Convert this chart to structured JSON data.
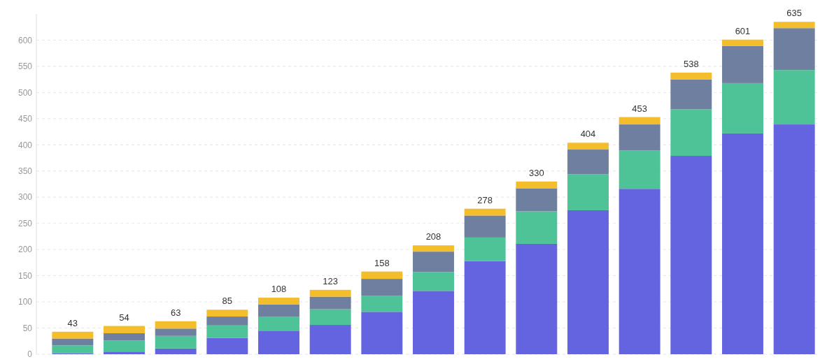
{
  "chart_data": {
    "type": "bar",
    "stacked": true,
    "categories": [
      null,
      null,
      null,
      null,
      null,
      null,
      null,
      null,
      null,
      null,
      null,
      null,
      null,
      null,
      null
    ],
    "series": [
      {
        "color": "#6463e0",
        "values": [
          2,
          5,
          11,
          31,
          45,
          56,
          81,
          121,
          178,
          211,
          275,
          316,
          379,
          422,
          439
        ]
      },
      {
        "color": "#4dc397",
        "values": [
          15,
          21,
          24,
          24,
          27,
          30,
          31,
          36,
          45,
          62,
          69,
          73,
          89,
          96,
          104
        ]
      },
      {
        "color": "#6e7fa0",
        "values": [
          13,
          14,
          14,
          17,
          23,
          24,
          32,
          39,
          42,
          44,
          47,
          50,
          57,
          71,
          80
        ]
      },
      {
        "color": "#f3bd2c",
        "values": [
          13,
          14,
          14,
          13,
          13,
          13,
          14,
          12,
          13,
          13,
          13,
          14,
          13,
          12,
          12
        ]
      }
    ],
    "totals": [
      "43",
      "54",
      "63",
      "85",
      "108",
      "123",
      "158",
      "208",
      "278",
      "330",
      "404",
      "453",
      "538",
      "601",
      "635"
    ],
    "ylim": [
      0,
      650
    ],
    "yticks": [
      0,
      50,
      100,
      150,
      200,
      250,
      300,
      350,
      400,
      450,
      500,
      550,
      600
    ],
    "grid": "y",
    "tick_labels": "y"
  }
}
